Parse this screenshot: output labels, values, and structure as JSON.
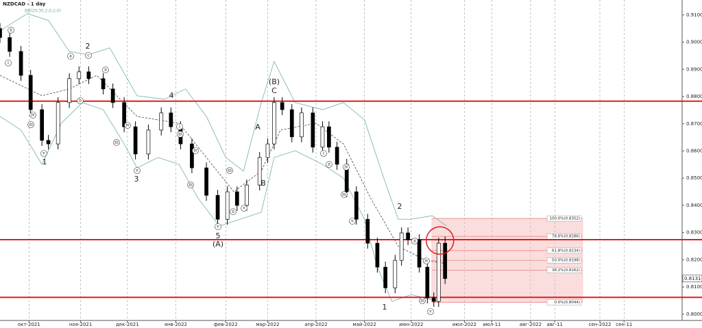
{
  "chart_data": {
    "type": "candlestick",
    "title": "NZDCAD - 1 day",
    "subtitle": "BB(20,30,2,0,2,0)",
    "x": [
      -18,
      -12,
      -5,
      1,
      8,
      12,
      18,
      25,
      31,
      37,
      46,
      52,
      59,
      66,
      74,
      82,
      88,
      94,
      101,
      110,
      117,
      123,
      129,
      135,
      143,
      148,
      152,
      157,
      163,
      169,
      176,
      182,
      186,
      191,
      197,
      203,
      210,
      216,
      221,
      227,
      231,
      235,
      242,
      247,
      251,
      254,
      258
    ],
    "open": [
      0.905,
      0.9017,
      0.8966,
      0.8878,
      0.8752,
      0.8639,
      0.8626,
      0.8778,
      0.8866,
      0.8891,
      0.8866,
      0.8828,
      0.8778,
      0.8689,
      0.8589,
      0.8677,
      0.874,
      0.8689,
      0.8626,
      0.8538,
      0.8437,
      0.8349,
      0.845,
      0.84,
      0.8475,
      0.8576,
      0.8626,
      0.8778,
      0.8752,
      0.8652,
      0.874,
      0.8614,
      0.8689,
      0.8614,
      0.8551,
      0.845,
      0.8349,
      0.8261,
      0.8173,
      0.8097,
      0.8198,
      0.8299,
      0.8274,
      0.8173,
      0.806,
      0.8047,
      0.8261
    ],
    "high": [
      0.907,
      0.9037,
      0.8986,
      0.8898,
      0.8772,
      0.8659,
      0.8798,
      0.8886,
      0.8911,
      0.8911,
      0.8886,
      0.8848,
      0.8798,
      0.8709,
      0.8697,
      0.876,
      0.876,
      0.8709,
      0.8646,
      0.8558,
      0.8457,
      0.847,
      0.847,
      0.8495,
      0.8596,
      0.8646,
      0.8798,
      0.8798,
      0.8772,
      0.876,
      0.876,
      0.8709,
      0.8709,
      0.8634,
      0.8571,
      0.847,
      0.8369,
      0.8281,
      0.8193,
      0.8218,
      0.8319,
      0.8319,
      0.8294,
      0.8193,
      0.808,
      0.8281,
      0.8286
    ],
    "low": [
      0.8997,
      0.8946,
      0.8858,
      0.8732,
      0.8619,
      0.8606,
      0.8606,
      0.8758,
      0.8846,
      0.8846,
      0.8808,
      0.8758,
      0.8669,
      0.8569,
      0.8569,
      0.8657,
      0.8669,
      0.8606,
      0.8518,
      0.8417,
      0.8329,
      0.8329,
      0.838,
      0.838,
      0.8455,
      0.8556,
      0.8606,
      0.8732,
      0.8632,
      0.8632,
      0.8594,
      0.8594,
      0.8594,
      0.8531,
      0.843,
      0.8329,
      0.8241,
      0.8153,
      0.8077,
      0.8077,
      0.8178,
      0.8254,
      0.8153,
      0.804,
      0.8027,
      0.8027,
      0.8111
    ],
    "close": [
      0.9017,
      0.8966,
      0.8878,
      0.8752,
      0.8639,
      0.8626,
      0.8778,
      0.8866,
      0.8891,
      0.8866,
      0.8828,
      0.8778,
      0.8689,
      0.8589,
      0.8677,
      0.874,
      0.8689,
      0.8626,
      0.8538,
      0.8437,
      0.8349,
      0.845,
      0.84,
      0.8475,
      0.8576,
      0.8626,
      0.8778,
      0.8752,
      0.8652,
      0.874,
      0.8614,
      0.8689,
      0.8614,
      0.8551,
      0.845,
      0.8349,
      0.8261,
      0.8173,
      0.8097,
      0.8198,
      0.8299,
      0.8274,
      0.8173,
      0.806,
      0.8047,
      0.8261,
      0.8131
    ],
    "up_color": "#ffffff",
    "down_color": "#000000",
    "bands": [
      {
        "x": [
          -18,
          -1,
          12,
          25,
          37,
          50,
          67,
          84,
          97,
          110,
          122,
          133,
          144,
          152,
          165,
          182,
          195,
          208,
          220,
          229,
          237,
          250,
          259
        ],
        "values": [
          0.9042,
          0.9105,
          0.908,
          0.8966,
          0.8954,
          0.8979,
          0.8803,
          0.879,
          0.8828,
          0.8727,
          0.8576,
          0.8526,
          0.8778,
          0.8929,
          0.8778,
          0.8752,
          0.8778,
          0.8715,
          0.85,
          0.8349,
          0.8349,
          0.8362,
          0.8324
        ],
        "color": "#7fb8b0",
        "dashed": false
      },
      {
        "x": [
          -18,
          8,
          25,
          42,
          67,
          93,
          110,
          127,
          144,
          156,
          178,
          195,
          212,
          229,
          246,
          259
        ],
        "values": [
          0.8878,
          0.8803,
          0.8828,
          0.8878,
          0.8727,
          0.8702,
          0.8576,
          0.845,
          0.8526,
          0.8677,
          0.8702,
          0.8626,
          0.8425,
          0.8249,
          0.8198,
          0.8186
        ],
        "color": "#555555",
        "dashed": true
      },
      {
        "x": [
          -18,
          -5,
          8,
          20,
          33,
          46,
          59,
          67,
          80,
          93,
          105,
          118,
          131,
          144,
          152,
          165,
          182,
          195,
          208,
          216,
          225,
          237,
          254
        ],
        "values": [
          0.8727,
          0.8677,
          0.8551,
          0.8702,
          0.8778,
          0.8752,
          0.8626,
          0.8538,
          0.8576,
          0.8551,
          0.8425,
          0.8324,
          0.8349,
          0.8375,
          0.8576,
          0.8601,
          0.8551,
          0.85,
          0.8349,
          0.8173,
          0.8047,
          0.8072,
          0.8047
        ],
        "color": "#7fb8b0",
        "dashed": false
      }
    ],
    "levels": [
      0.8783,
      0.8274,
      0.8062
    ],
    "level_color": "#e31a1a",
    "fib": [
      {
        "value": 0.8352,
        "label": "100.0%(0.8352)"
      },
      {
        "value": 0.8286,
        "label": "78.6%(0.8286)"
      },
      {
        "value": 0.8234,
        "label": "61.8%(0.8234)"
      },
      {
        "value": 0.8198,
        "label": "50.0%(0.8198)"
      },
      {
        "value": 0.8162,
        "label": "38.2%(0.8162)"
      },
      {
        "value": 0.8044,
        "label": "0.0%(0.8044)"
      }
    ],
    "last_price": {
      "value": 0.8131,
      "label": "0.8131"
    },
    "wave_labels": [
      "2",
      "1",
      "3",
      "4",
      "5",
      "(A)",
      "A",
      "B",
      "(B)",
      "C",
      "2",
      "1"
    ],
    "circle_labels": [
      "ii",
      "i",
      "iii",
      "iv",
      "v",
      "a",
      "b",
      "c",
      "ii",
      "iii",
      "v",
      "iv",
      "iii",
      "v",
      "iii",
      "ii",
      "i",
      "iii",
      "iv",
      "v",
      "i",
      "ii",
      "iii",
      "iv",
      "v",
      "ii",
      "iv",
      "iii",
      "v"
    ],
    "xlim": [
      -18,
      405
    ],
    "ylim": [
      0.7977,
      0.9155
    ],
    "xticks": [
      {
        "value": 0,
        "label": "окт-2021"
      },
      {
        "value": 32,
        "label": "ноя-2021"
      },
      {
        "value": 61,
        "label": "дек-2021"
      },
      {
        "value": 91,
        "label": "янв-2022"
      },
      {
        "value": 122,
        "label": "фев-2022"
      },
      {
        "value": 148,
        "label": "мар-2022"
      },
      {
        "value": 178,
        "label": "апр-2022"
      },
      {
        "value": 208,
        "label": "май-2022"
      },
      {
        "value": 237,
        "label": "июн-2022"
      },
      {
        "value": 270,
        "label": "июл-2022"
      },
      {
        "value": 287,
        "label": "июл-11"
      },
      {
        "value": 311,
        "label": "авг-2022"
      },
      {
        "value": 326,
        "label": "авг-11"
      },
      {
        "value": 354,
        "label": "сен-2022"
      },
      {
        "value": 369,
        "label": "сен-11"
      }
    ],
    "yticks": [
      {
        "value": 0.8,
        "label": "0.8000"
      },
      {
        "value": 0.81,
        "label": "0.8100"
      },
      {
        "value": 0.82,
        "label": "0.8200"
      },
      {
        "value": 0.83,
        "label": "0.8300"
      },
      {
        "value": 0.84,
        "label": "0.8400"
      },
      {
        "value": 0.85,
        "label": "0.8500"
      },
      {
        "value": 0.86,
        "label": "0.8600"
      },
      {
        "value": 0.87,
        "label": "0.8700"
      },
      {
        "value": 0.88,
        "label": "0.8800"
      },
      {
        "value": 0.89,
        "label": "0.8900"
      },
      {
        "value": 0.9,
        "label": "0.9000"
      },
      {
        "value": 0.91,
        "label": "0.9100"
      }
    ],
    "grid": true
  }
}
